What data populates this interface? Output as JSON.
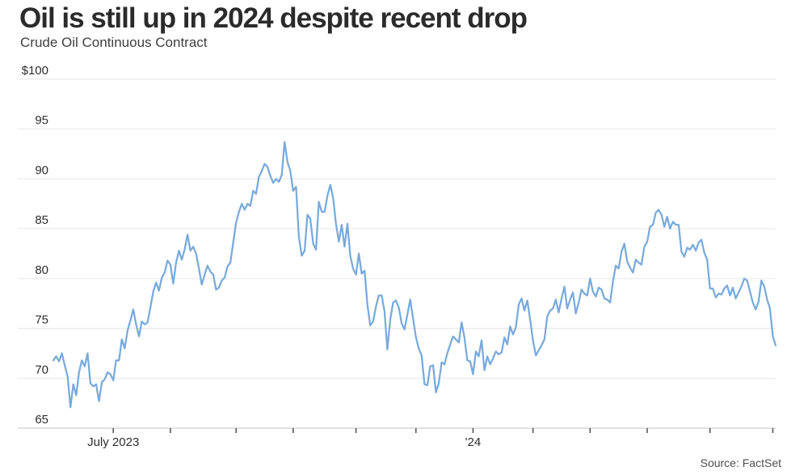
{
  "chart_data": {
    "type": "line",
    "title": "Oil is still up in 2024 despite recent drop",
    "subtitle": "Crude Oil Continuous Contract",
    "source": "Source: FactSet",
    "series_name": "Crude Oil Continuous Contract ($/bbl)",
    "x_domain_hint": "daily prices, June 2023 through early June 2024",
    "ylim": [
      65,
      100
    ],
    "grid": "horizontal-only",
    "legend": "none",
    "line_color": "#78aadc",
    "colors": {
      "grid": "#ebebeb",
      "axis": "#cfcfcf",
      "tick": "#4d4d4d",
      "tick_text": "#2d2d2d",
      "title_text": "#2b2b2b",
      "subtitle_text": "#3f3f3f",
      "source_text": "#4f4f4f"
    },
    "y_axis": {
      "baseline": 65,
      "ticks": [
        {
          "value": 100,
          "label": "$100"
        },
        {
          "value": 95,
          "label": "95"
        },
        {
          "value": 90,
          "label": "90"
        },
        {
          "value": 85,
          "label": "85"
        },
        {
          "value": 80,
          "label": "80"
        },
        {
          "value": 75,
          "label": "75"
        },
        {
          "value": 70,
          "label": "70"
        },
        {
          "value": 65,
          "label": "65"
        }
      ]
    },
    "x_axis": {
      "month_start_indices": [
        21,
        41,
        64,
        84,
        106,
        127,
        147,
        168,
        188,
        208,
        230,
        252
      ],
      "labels": [
        {
          "text": "July 2023",
          "index": 21
        },
        {
          "text": "'24",
          "index": 147
        }
      ]
    },
    "values": [
      71.8,
      72.2,
      71.7,
      72.5,
      71.3,
      70.2,
      67.1,
      69.4,
      68.3,
      70.6,
      71.8,
      71.2,
      72.5,
      69.5,
      69.2,
      69.4,
      67.7,
      69.6,
      69.9,
      70.6,
      70.4,
      69.8,
      71.8,
      71.8,
      73.9,
      73.0,
      74.8,
      75.8,
      76.9,
      75.4,
      74.2,
      75.7,
      75.4,
      75.6,
      77.1,
      78.7,
      79.6,
      78.8,
      80.1,
      80.6,
      81.8,
      81.4,
      79.5,
      81.6,
      82.8,
      81.9,
      82.9,
      84.4,
      82.8,
      83.2,
      82.5,
      81.0,
      79.4,
      80.4,
      81.3,
      80.7,
      80.4,
      78.9,
      79.1,
      79.8,
      80.1,
      81.2,
      81.6,
      83.6,
      85.6,
      86.7,
      87.5,
      86.9,
      87.5,
      87.3,
      88.8,
      88.5,
      90.2,
      90.8,
      91.5,
      91.2,
      90.3,
      89.6,
      90.0,
      89.7,
      90.4,
      93.7,
      91.7,
      90.8,
      88.8,
      89.2,
      84.2,
      82.3,
      82.8,
      86.4,
      86.0,
      83.5,
      82.9,
      87.7,
      86.7,
      86.7,
      88.3,
      89.4,
      88.1,
      85.5,
      83.7,
      85.4,
      83.2,
      85.5,
      82.3,
      81.0,
      80.4,
      82.5,
      80.5,
      80.8,
      77.4,
      75.3,
      75.7,
      77.2,
      78.3,
      78.3,
      76.7,
      72.9,
      75.9,
      77.6,
      77.8,
      77.1,
      75.5,
      74.9,
      76.4,
      77.9,
      76.0,
      74.1,
      73.0,
      72.3,
      69.4,
      69.3,
      71.2,
      71.3,
      68.6,
      69.5,
      71.6,
      71.4,
      72.5,
      73.4,
      74.2,
      73.9,
      73.6,
      75.6,
      74.1,
      71.8,
      71.7,
      70.4,
      72.7,
      72.2,
      73.8,
      70.8,
      72.2,
      71.4,
      72.0,
      72.7,
      72.4,
      72.6,
      74.1,
      73.4,
      75.2,
      74.4,
      75.1,
      77.4,
      78.0,
      76.8,
      77.8,
      75.9,
      73.8,
      72.3,
      72.8,
      73.3,
      73.9,
      76.2,
      76.8,
      77.0,
      77.9,
      76.6,
      78.0,
      79.2,
      77.0,
      77.9,
      78.6,
      76.5,
      77.6,
      78.9,
      78.5,
      78.3,
      80.0,
      78.7,
      78.2,
      79.1,
      78.9,
      78.0,
      77.9,
      77.6,
      79.7,
      81.3,
      81.0,
      82.7,
      83.5,
      81.7,
      81.1,
      80.6,
      81.9,
      81.6,
      81.4,
      83.2,
      83.7,
      85.2,
      85.4,
      86.6,
      86.9,
      86.4,
      85.2,
      86.2,
      85.0,
      85.7,
      85.4,
      85.4,
      82.7,
      82.2,
      83.1,
      82.9,
      83.4,
      82.8,
      83.6,
      83.9,
      82.6,
      81.9,
      79.0,
      79.0,
      78.1,
      78.5,
      78.4,
      79.0,
      79.3,
      78.3,
      79.1,
      78.0,
      78.6,
      79.2,
      80.0,
      79.8,
      78.7,
      77.6,
      76.9,
      77.7,
      79.8,
      79.2,
      77.9,
      77.0,
      74.2,
      73.3
    ]
  }
}
